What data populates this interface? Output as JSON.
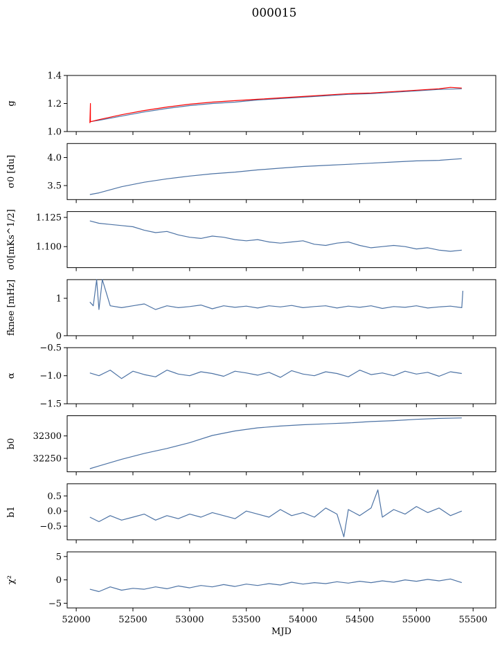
{
  "title": "000015",
  "colors": {
    "series": "#4c72a4",
    "highlight": "#ff0000"
  },
  "chart_data": [
    {
      "type": "line",
      "ylabel": "g",
      "ylim": [
        1.0,
        1.4
      ],
      "yticks": [
        1.0,
        1.2,
        1.4
      ],
      "tick_labels": [
        "1.0",
        "1.2",
        "1.4"
      ],
      "series": [
        {
          "name": "g",
          "color": "#4c72a4",
          "x": [
            52120,
            52200,
            52400,
            52600,
            52800,
            53000,
            53200,
            53400,
            53600,
            53800,
            54000,
            54200,
            54400,
            54600,
            54800,
            55000,
            55200,
            55400
          ],
          "values": [
            1.07,
            1.08,
            1.11,
            1.14,
            1.165,
            1.185,
            1.2,
            1.21,
            1.225,
            1.235,
            1.245,
            1.255,
            1.265,
            1.27,
            1.28,
            1.29,
            1.3,
            1.305
          ]
        },
        {
          "name": "g (red)",
          "color": "#ff0000",
          "x": [
            52120,
            52125,
            52125,
            52200,
            52400,
            52600,
            52800,
            53000,
            53200,
            53400,
            53600,
            53800,
            54000,
            54200,
            54400,
            54600,
            54800,
            55000,
            55200,
            55300,
            55400
          ],
          "values": [
            1.06,
            1.2,
            1.07,
            1.085,
            1.12,
            1.15,
            1.175,
            1.195,
            1.21,
            1.22,
            1.23,
            1.24,
            1.25,
            1.26,
            1.27,
            1.275,
            1.285,
            1.295,
            1.305,
            1.315,
            1.31
          ]
        }
      ]
    },
    {
      "type": "line",
      "ylabel": "σ0 [du]",
      "ylim": [
        3.25,
        4.25
      ],
      "yticks": [
        3.5,
        4.0
      ],
      "tick_labels": [
        "3.5",
        "4.0"
      ],
      "series": [
        {
          "name": "sigma0_du",
          "color": "#4c72a4",
          "x": [
            52120,
            52200,
            52400,
            52600,
            52800,
            53000,
            53200,
            53400,
            53600,
            53800,
            54000,
            54200,
            54400,
            54600,
            54800,
            55000,
            55200,
            55400
          ],
          "values": [
            3.34,
            3.37,
            3.48,
            3.56,
            3.62,
            3.67,
            3.71,
            3.74,
            3.78,
            3.81,
            3.84,
            3.86,
            3.88,
            3.9,
            3.92,
            3.94,
            3.95,
            3.98
          ]
        }
      ]
    },
    {
      "type": "line",
      "ylabel": "σ0[mKs^1/2]",
      "ylim": [
        1.082,
        1.13
      ],
      "yticks": [
        1.1,
        1.125
      ],
      "tick_labels": [
        "1.100",
        "1.125"
      ],
      "series": [
        {
          "name": "sigma0_mK",
          "color": "#4c72a4",
          "x": [
            52120,
            52200,
            52300,
            52400,
            52500,
            52600,
            52700,
            52800,
            52900,
            53000,
            53100,
            53200,
            53300,
            53400,
            53500,
            53600,
            53700,
            53800,
            53900,
            54000,
            54100,
            54200,
            54300,
            54400,
            54500,
            54600,
            54700,
            54800,
            54900,
            55000,
            55100,
            55200,
            55300,
            55400
          ],
          "values": [
            1.122,
            1.12,
            1.119,
            1.118,
            1.117,
            1.114,
            1.112,
            1.113,
            1.11,
            1.108,
            1.107,
            1.109,
            1.108,
            1.106,
            1.105,
            1.106,
            1.104,
            1.103,
            1.104,
            1.105,
            1.102,
            1.101,
            1.103,
            1.104,
            1.101,
            1.099,
            1.1,
            1.101,
            1.1,
            1.098,
            1.099,
            1.097,
            1.096,
            1.097
          ]
        }
      ]
    },
    {
      "type": "line",
      "ylabel": "fknee [mHz]",
      "ylim": [
        0,
        1.5
      ],
      "yticks": [
        0,
        1
      ],
      "tick_labels": [
        "0",
        "1"
      ],
      "series": [
        {
          "name": "fknee",
          "color": "#4c72a4",
          "x": [
            52120,
            52150,
            52180,
            52200,
            52230,
            52300,
            52400,
            52500,
            52600,
            52700,
            52800,
            52900,
            53000,
            53100,
            53200,
            53300,
            53400,
            53500,
            53600,
            53700,
            53800,
            53900,
            54000,
            54100,
            54200,
            54300,
            54400,
            54500,
            54600,
            54700,
            54800,
            54900,
            55000,
            55100,
            55200,
            55300,
            55400,
            55410
          ],
          "values": [
            0.9,
            0.8,
            1.5,
            0.7,
            1.5,
            0.8,
            0.75,
            0.8,
            0.85,
            0.7,
            0.8,
            0.75,
            0.78,
            0.82,
            0.72,
            0.8,
            0.76,
            0.79,
            0.74,
            0.8,
            0.77,
            0.81,
            0.75,
            0.78,
            0.8,
            0.74,
            0.79,
            0.76,
            0.8,
            0.73,
            0.78,
            0.76,
            0.8,
            0.74,
            0.77,
            0.79,
            0.75,
            1.2
          ]
        }
      ]
    },
    {
      "type": "line",
      "ylabel": "α",
      "ylim": [
        -1.5,
        -0.5
      ],
      "yticks": [
        -1.5,
        -1.0,
        -0.5
      ],
      "tick_labels": [
        "−1.5",
        "−1.0",
        "−0.5"
      ],
      "series": [
        {
          "name": "alpha",
          "color": "#4c72a4",
          "x": [
            52120,
            52200,
            52300,
            52400,
            52500,
            52600,
            52700,
            52800,
            52900,
            53000,
            53100,
            53200,
            53300,
            53400,
            53500,
            53600,
            53700,
            53800,
            53900,
            54000,
            54100,
            54200,
            54300,
            54400,
            54500,
            54600,
            54700,
            54800,
            54900,
            55000,
            55100,
            55200,
            55300,
            55400
          ],
          "values": [
            -0.95,
            -1.0,
            -0.9,
            -1.05,
            -0.92,
            -0.98,
            -1.02,
            -0.9,
            -0.97,
            -1.0,
            -0.93,
            -0.96,
            -1.01,
            -0.92,
            -0.95,
            -0.99,
            -0.94,
            -1.03,
            -0.91,
            -0.97,
            -1.0,
            -0.93,
            -0.96,
            -1.02,
            -0.9,
            -0.98,
            -0.95,
            -1.0,
            -0.92,
            -0.97,
            -0.94,
            -1.01,
            -0.93,
            -0.96
          ]
        }
      ]
    },
    {
      "type": "line",
      "ylabel": "b0",
      "ylim": [
        32220,
        32345
      ],
      "yticks": [
        32250,
        32300
      ],
      "tick_labels": [
        "32250",
        "32300"
      ],
      "series": [
        {
          "name": "b0",
          "color": "#4c72a4",
          "x": [
            52120,
            52200,
            52400,
            52600,
            52800,
            53000,
            53200,
            53400,
            53600,
            53800,
            54000,
            54200,
            54400,
            54600,
            54800,
            55000,
            55200,
            55400
          ],
          "values": [
            32227,
            32233,
            32248,
            32261,
            32272,
            32285,
            32301,
            32311,
            32318,
            32322,
            32325,
            32327,
            32329,
            32332,
            32334,
            32337,
            32339,
            32340
          ]
        }
      ]
    },
    {
      "type": "line",
      "ylabel": "b1",
      "ylim": [
        -0.95,
        0.9
      ],
      "yticks": [
        -0.5,
        0.0,
        0.5
      ],
      "tick_labels": [
        "−0.5",
        "0.0",
        "0.5"
      ],
      "series": [
        {
          "name": "b1",
          "color": "#4c72a4",
          "x": [
            52120,
            52200,
            52300,
            52400,
            52500,
            52600,
            52700,
            52800,
            52900,
            53000,
            53100,
            53200,
            53300,
            53400,
            53500,
            53600,
            53700,
            53800,
            53900,
            54000,
            54100,
            54200,
            54300,
            54360,
            54400,
            54500,
            54600,
            54660,
            54700,
            54800,
            54900,
            55000,
            55100,
            55200,
            55300,
            55400
          ],
          "values": [
            -0.2,
            -0.35,
            -0.15,
            -0.3,
            -0.2,
            -0.1,
            -0.3,
            -0.15,
            -0.25,
            -0.1,
            -0.2,
            -0.05,
            -0.15,
            -0.25,
            0.0,
            -0.1,
            -0.2,
            0.05,
            -0.15,
            -0.05,
            -0.2,
            0.1,
            -0.1,
            -0.85,
            0.05,
            -0.15,
            0.1,
            0.7,
            -0.2,
            0.05,
            -0.1,
            0.15,
            -0.05,
            0.1,
            -0.15,
            0.0
          ]
        }
      ]
    },
    {
      "type": "line",
      "ylabel": "χ²",
      "ylim": [
        -6,
        6
      ],
      "yticks": [
        -5,
        0,
        5
      ],
      "tick_labels": [
        "−5",
        "0",
        "5"
      ],
      "series": [
        {
          "name": "chi2",
          "color": "#4c72a4",
          "x": [
            52120,
            52200,
            52300,
            52400,
            52500,
            52600,
            52700,
            52800,
            52900,
            53000,
            53100,
            53200,
            53300,
            53400,
            53500,
            53600,
            53700,
            53800,
            53900,
            54000,
            54100,
            54200,
            54300,
            54400,
            54500,
            54600,
            54700,
            54800,
            54900,
            55000,
            55100,
            55200,
            55300,
            55400
          ],
          "values": [
            -2.0,
            -2.5,
            -1.5,
            -2.2,
            -1.8,
            -2.0,
            -1.5,
            -1.9,
            -1.3,
            -1.7,
            -1.2,
            -1.5,
            -1.0,
            -1.4,
            -0.9,
            -1.2,
            -0.8,
            -1.1,
            -0.5,
            -0.9,
            -0.6,
            -0.8,
            -0.4,
            -0.7,
            -0.3,
            -0.6,
            -0.2,
            -0.5,
            0.0,
            -0.3,
            0.1,
            -0.2,
            0.2,
            -0.6
          ]
        }
      ]
    }
  ],
  "xaxis": {
    "label": "MJD",
    "lim": [
      51920,
      55700
    ],
    "ticks": [
      52000,
      52500,
      53000,
      53500,
      54000,
      54500,
      55000,
      55500
    ],
    "tick_labels": [
      "52000",
      "52500",
      "53000",
      "53500",
      "54000",
      "54500",
      "55000",
      "55500"
    ]
  }
}
